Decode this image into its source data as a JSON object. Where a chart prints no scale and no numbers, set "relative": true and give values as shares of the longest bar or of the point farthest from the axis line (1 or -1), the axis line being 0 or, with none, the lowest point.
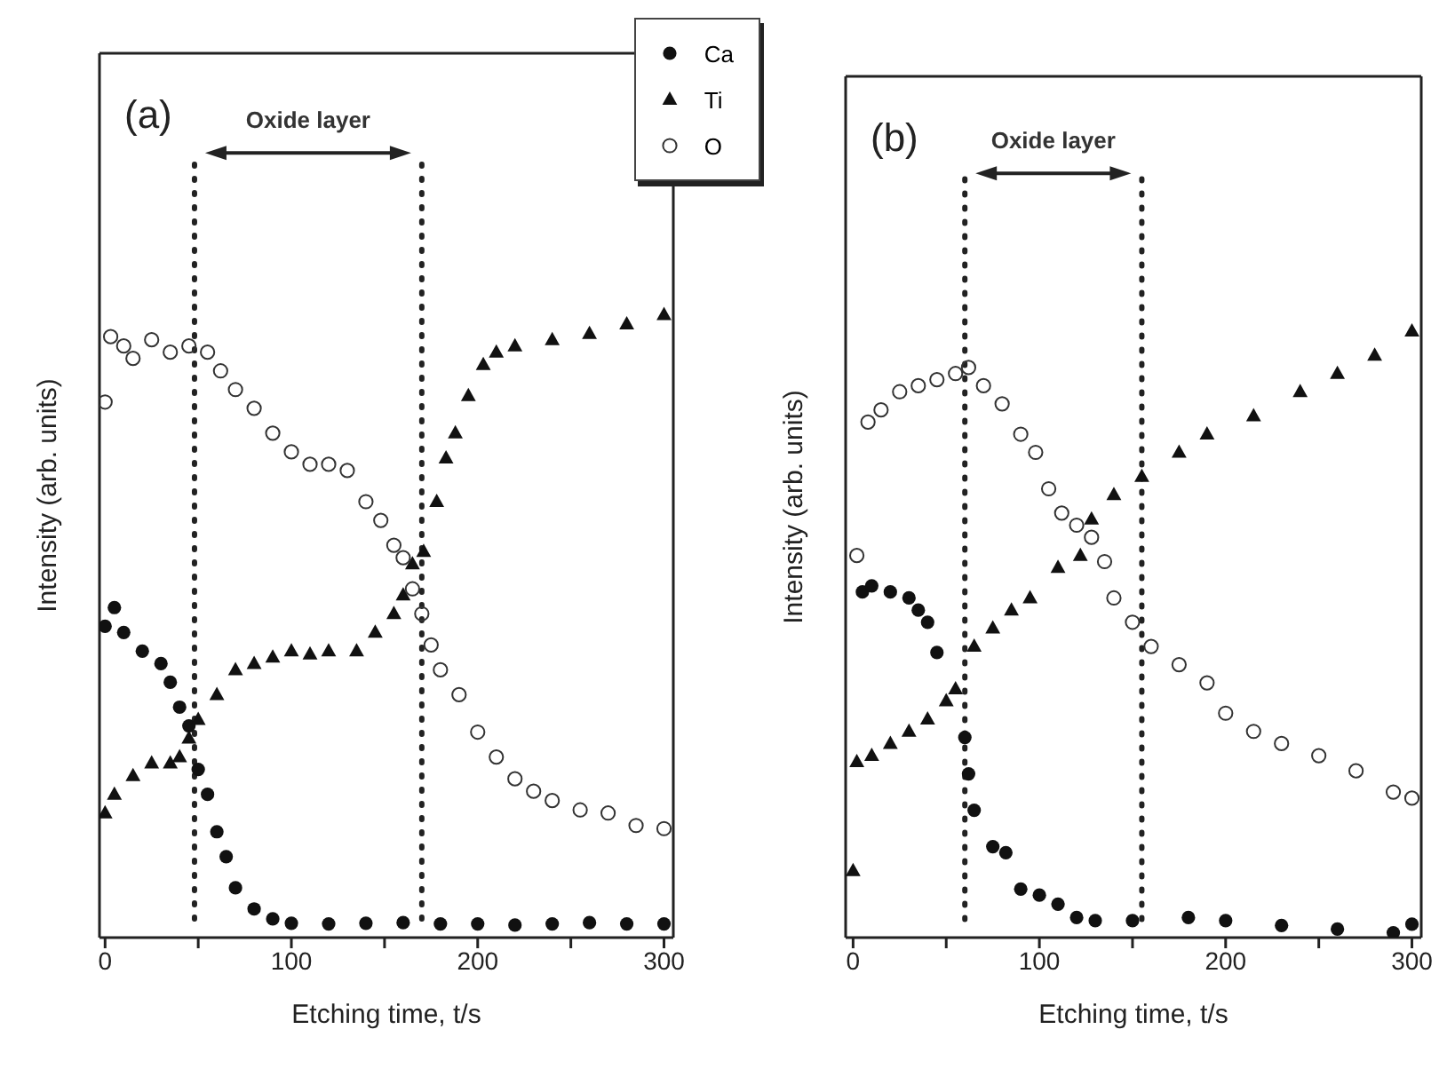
{
  "chart_data": [
    {
      "type": "scatter",
      "relative": true,
      "xlabel": "Etching time, t/s",
      "ylabel": "Intensity (arb. units)",
      "xlim": [
        -3,
        305
      ],
      "xticks": [
        0,
        {
          "value": 50,
          "label": null
        },
        100,
        {
          "value": 150,
          "label": null
        },
        200,
        {
          "value": 250,
          "label": null
        },
        300
      ],
      "legend": "top right",
      "grid": false,
      "annotations": [
        "(a)",
        "Oxide layer"
      ],
      "ref_lines": [
        {
          "axis": "x",
          "value": 48,
          "color": "#222222",
          "line_style": "dotted"
        },
        {
          "axis": "x",
          "value": 170,
          "color": "#222222",
          "line_style": "dotted"
        }
      ],
      "series": [
        {
          "name": "Ca",
          "color": "#111111",
          "marker": "circle",
          "x": [
            0,
            5,
            10,
            20,
            30,
            35,
            40,
            45,
            50,
            55,
            60,
            65,
            70,
            80,
            90,
            100,
            120,
            140,
            160,
            180,
            200,
            220,
            240,
            260,
            280,
            300
          ],
          "values": [
            0.5,
            0.53,
            0.49,
            0.46,
            0.44,
            0.41,
            0.37,
            0.34,
            0.27,
            0.23,
            0.17,
            0.13,
            0.08,
            0.046,
            0.03,
            0.023,
            0.022,
            0.023,
            0.024,
            0.022,
            0.022,
            0.02,
            0.022,
            0.024,
            0.022,
            0.022
          ]
        },
        {
          "name": "Ti",
          "color": "#111111",
          "marker": "triangle",
          "x": [
            0,
            5,
            15,
            25,
            35,
            40,
            45,
            50,
            60,
            70,
            80,
            90,
            100,
            110,
            120,
            135,
            145,
            155,
            160,
            165,
            171,
            178,
            183,
            188,
            195,
            203,
            210,
            220,
            240,
            260,
            280,
            300
          ],
          "values": [
            0.2,
            0.23,
            0.26,
            0.28,
            0.28,
            0.29,
            0.32,
            0.35,
            0.39,
            0.43,
            0.44,
            0.45,
            0.46,
            0.455,
            0.46,
            0.46,
            0.49,
            0.52,
            0.55,
            0.6,
            0.62,
            0.7,
            0.77,
            0.81,
            0.87,
            0.92,
            0.94,
            0.95,
            0.96,
            0.97,
            0.985,
            1
          ]
        },
        {
          "name": "O",
          "color": "#333333",
          "marker": "circle",
          "x": [
            0,
            3,
            10,
            15,
            25,
            35,
            45,
            55,
            62,
            70,
            80,
            90,
            100,
            110,
            120,
            130,
            140,
            148,
            155,
            160,
            165,
            170,
            175,
            180,
            190,
            200,
            210,
            220,
            230,
            240,
            255,
            270,
            285,
            300
          ],
          "values": [
            0.86,
            0.965,
            0.95,
            0.93,
            0.96,
            0.94,
            0.95,
            0.94,
            0.91,
            0.88,
            0.85,
            0.81,
            0.78,
            0.76,
            0.76,
            0.75,
            0.7,
            0.67,
            0.63,
            0.61,
            0.56,
            0.52,
            0.47,
            0.43,
            0.39,
            0.33,
            0.29,
            0.255,
            0.235,
            0.22,
            0.205,
            0.2,
            0.18,
            0.175
          ]
        }
      ]
    },
    {
      "type": "scatter",
      "relative": true,
      "xlabel": "Etching time, t/s",
      "ylabel": "Intensity (arb. units)",
      "xlim": [
        -4,
        305
      ],
      "xticks": [
        0,
        {
          "value": 50,
          "label": null
        },
        100,
        {
          "value": 150,
          "label": null
        },
        200,
        {
          "value": 250,
          "label": null
        },
        300
      ],
      "grid": false,
      "annotations": [
        "(b)",
        "Oxide layer"
      ],
      "ref_lines": [
        {
          "axis": "x",
          "value": 60,
          "color": "#222222",
          "line_style": "dotted"
        },
        {
          "axis": "x",
          "value": 155,
          "color": "#222222",
          "line_style": "dotted"
        }
      ],
      "series": [
        {
          "color": "#111111",
          "marker": "circle",
          "x": [
            5,
            10,
            20,
            30,
            35,
            40,
            45,
            60,
            62,
            65,
            75,
            82,
            90,
            100,
            110,
            120,
            130,
            150,
            180,
            200,
            230,
            260,
            290,
            300
          ],
          "values": [
            0.57,
            0.58,
            0.57,
            0.56,
            0.54,
            0.52,
            0.47,
            0.33,
            0.27,
            0.21,
            0.15,
            0.14,
            0.08,
            0.07,
            0.055,
            0.033,
            0.028,
            0.028,
            0.033,
            0.028,
            0.02,
            0.014,
            0.008,
            0.022
          ]
        },
        {
          "color": "#111111",
          "marker": "triangle",
          "x": [
            0,
            2,
            10,
            20,
            30,
            40,
            50,
            55,
            65,
            75,
            85,
            95,
            110,
            122,
            128,
            140,
            155,
            175,
            190,
            215,
            240,
            260,
            280,
            300
          ],
          "values": [
            0.11,
            0.29,
            0.3,
            0.32,
            0.34,
            0.36,
            0.39,
            0.41,
            0.48,
            0.51,
            0.54,
            0.56,
            0.61,
            0.63,
            0.69,
            0.73,
            0.76,
            0.8,
            0.83,
            0.86,
            0.9,
            0.93,
            0.96,
            1
          ]
        },
        {
          "color": "#333333",
          "marker": "circle",
          "x": [
            2,
            8,
            15,
            25,
            35,
            45,
            55,
            62,
            70,
            80,
            90,
            98,
            105,
            112,
            120,
            128,
            135,
            140,
            150,
            160,
            175,
            190,
            200,
            215,
            230,
            250,
            270,
            290,
            300
          ],
          "values": [
            0.63,
            0.85,
            0.87,
            0.9,
            0.91,
            0.92,
            0.93,
            0.94,
            0.91,
            0.88,
            0.83,
            0.8,
            0.74,
            0.7,
            0.68,
            0.66,
            0.62,
            0.56,
            0.52,
            0.48,
            0.45,
            0.42,
            0.37,
            0.34,
            0.32,
            0.3,
            0.275,
            0.24,
            0.23
          ]
        }
      ]
    }
  ]
}
